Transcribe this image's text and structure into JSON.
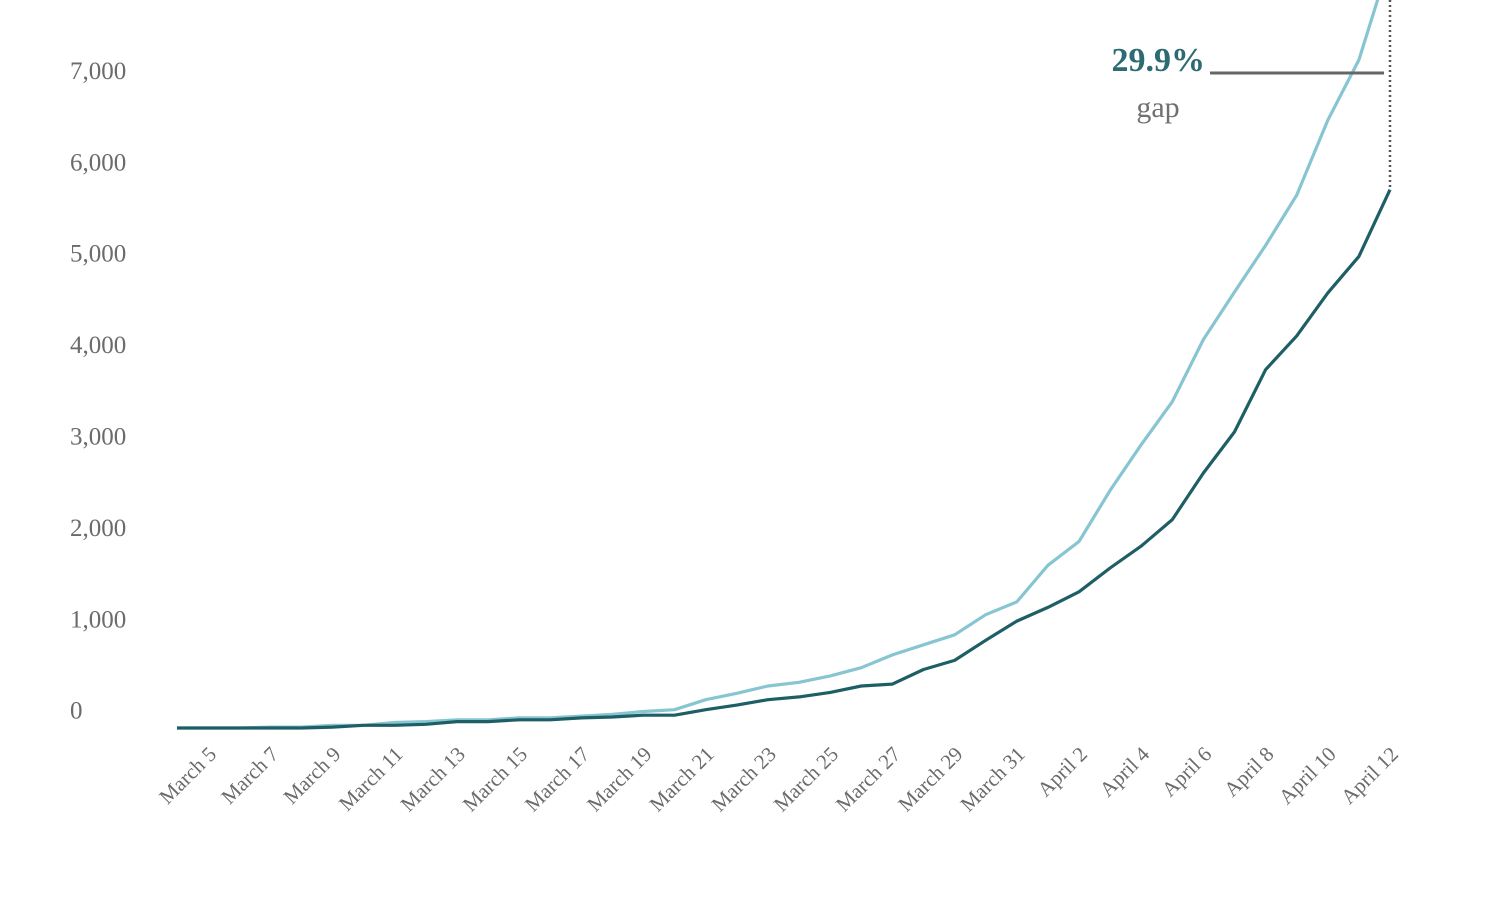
{
  "chart_data": {
    "type": "line",
    "categories": [
      null,
      "March 5",
      null,
      "March 7",
      null,
      "March 9",
      null,
      "March 11",
      null,
      "March 13",
      null,
      "March 15",
      null,
      "March 17",
      null,
      "March 19",
      null,
      "March 21",
      null,
      "March 23",
      null,
      "March 25",
      null,
      "March 27",
      null,
      "March 29",
      null,
      "March 31",
      null,
      "April 2",
      null,
      "April 4",
      null,
      "April 6",
      null,
      "April 8",
      null,
      "April 10",
      null,
      "April 12"
    ],
    "series": [
      {
        "color": "#86c5d1",
        "values": [
          0,
          0,
          0,
          10,
          10,
          30,
          30,
          60,
          70,
          90,
          90,
          110,
          110,
          130,
          150,
          180,
          200,
          310,
          380,
          460,
          500,
          570,
          660,
          800,
          910,
          1020,
          1240,
          1380,
          1780,
          2040,
          2600,
          3100,
          3570,
          4250,
          4770,
          5280,
          5830,
          6650,
          7310,
          8400
        ]
      },
      {
        "color": "#1e5f66",
        "values": [
          0,
          0,
          0,
          0,
          0,
          10,
          30,
          30,
          40,
          70,
          70,
          90,
          90,
          110,
          120,
          140,
          140,
          200,
          250,
          310,
          340,
          390,
          460,
          480,
          640,
          740,
          960,
          1170,
          1320,
          1490,
          1750,
          1990,
          2280,
          2790,
          3240,
          3920,
          4290,
          4760,
          5160,
          5890
        ]
      }
    ],
    "ylim": [
      0,
      8000
    ],
    "yticks": [
      0,
      {
        "value": 1000,
        "label": "1,000"
      },
      {
        "value": 2000,
        "label": "2,000"
      },
      {
        "value": 3000,
        "label": "3,000"
      },
      {
        "value": 4000,
        "label": "4,000"
      },
      {
        "value": 5000,
        "label": "5,000"
      },
      {
        "value": 6000,
        "label": "6,000"
      },
      {
        "value": 7000,
        "label": "7,000"
      }
    ],
    "grid": false,
    "annotation": {
      "value_text": "29.9%",
      "sub_text": "gap"
    }
  }
}
